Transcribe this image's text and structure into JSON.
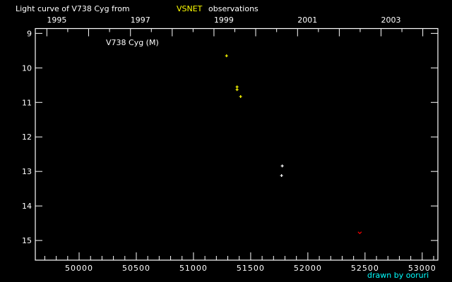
{
  "chart_data": {
    "type": "scatter",
    "title_prefix": "Light curve of V738 Cyg from",
    "title_source": "VSNET",
    "title_suffix": "observations",
    "legend_label": "V738 Cyg (M)",
    "credit": "drawn by ooruri",
    "xlim": [
      49617,
      53137
    ],
    "ylim": [
      15.57,
      8.86
    ],
    "y_inverted": true,
    "x_ticks": [
      50000,
      50500,
      51000,
      51500,
      52000,
      52500,
      53000
    ],
    "x_tick_labels": [
      "50000",
      "50500",
      "51000",
      "51500",
      "52000",
      "52500",
      "53000"
    ],
    "x_minor_step": 100,
    "y_ticks": [
      9,
      10,
      11,
      12,
      13,
      14,
      15
    ],
    "y_tick_labels": [
      "9",
      "10",
      "11",
      "12",
      "13",
      "14",
      "15"
    ],
    "year_ticks": [
      49718,
      50083,
      50449,
      50814,
      51179,
      51544,
      51910,
      52275,
      52640,
      53005
    ],
    "year_labels": [
      {
        "x": 49718,
        "label": "1995"
      },
      {
        "x": 50449,
        "label": "1997"
      },
      {
        "x": 51179,
        "label": "1999"
      },
      {
        "x": 51910,
        "label": "2001"
      },
      {
        "x": 52640,
        "label": "2003"
      }
    ],
    "series": [
      {
        "color": "#ffff00",
        "marker": "plus",
        "points": [
          [
            51289,
            9.65
          ],
          [
            51381,
            10.55
          ],
          [
            51381,
            10.63
          ],
          [
            51412,
            10.83
          ]
        ]
      },
      {
        "color": "#ffffff",
        "marker": "plus",
        "points": [
          [
            51776,
            12.84
          ],
          [
            51770,
            13.12
          ]
        ]
      },
      {
        "color": "#ff0000",
        "marker": "upper-limit",
        "points": [
          [
            52454,
            14.78
          ]
        ]
      }
    ],
    "colors": {
      "background": "#000000",
      "axes": "#ffffff",
      "source": "#ffff00",
      "credit": "#00ffff"
    }
  }
}
